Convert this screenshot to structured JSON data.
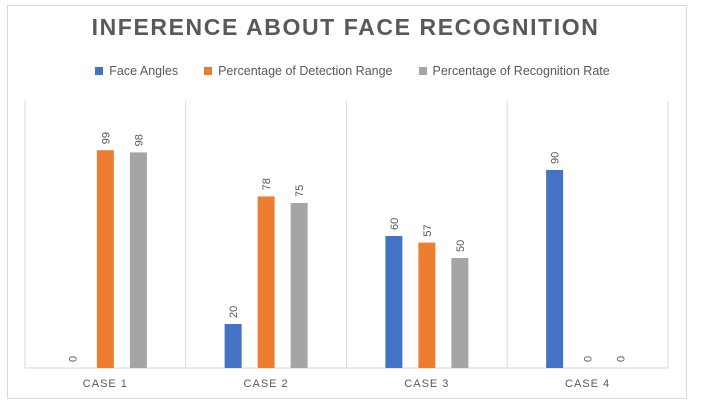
{
  "chart_data": {
    "type": "bar",
    "title": "INFERENCE ABOUT FACE RECOGNITION",
    "categories": [
      "CASE 1",
      "CASE 2",
      "CASE 3",
      "CASE 4"
    ],
    "series": [
      {
        "name": "Face Angles",
        "values": [
          0,
          20,
          60,
          90
        ],
        "color": "#4472c4"
      },
      {
        "name": "Percentage of Detection Range",
        "values": [
          99,
          78,
          57,
          0
        ],
        "color": "#ed7d31"
      },
      {
        "name": "Percentage of Recognition Rate",
        "values": [
          98,
          75,
          50,
          0
        ],
        "color": "#a5a5a5"
      }
    ],
    "ylim": [
      0,
      120
    ],
    "grid": "vertical category separators",
    "legend_position": "top"
  }
}
